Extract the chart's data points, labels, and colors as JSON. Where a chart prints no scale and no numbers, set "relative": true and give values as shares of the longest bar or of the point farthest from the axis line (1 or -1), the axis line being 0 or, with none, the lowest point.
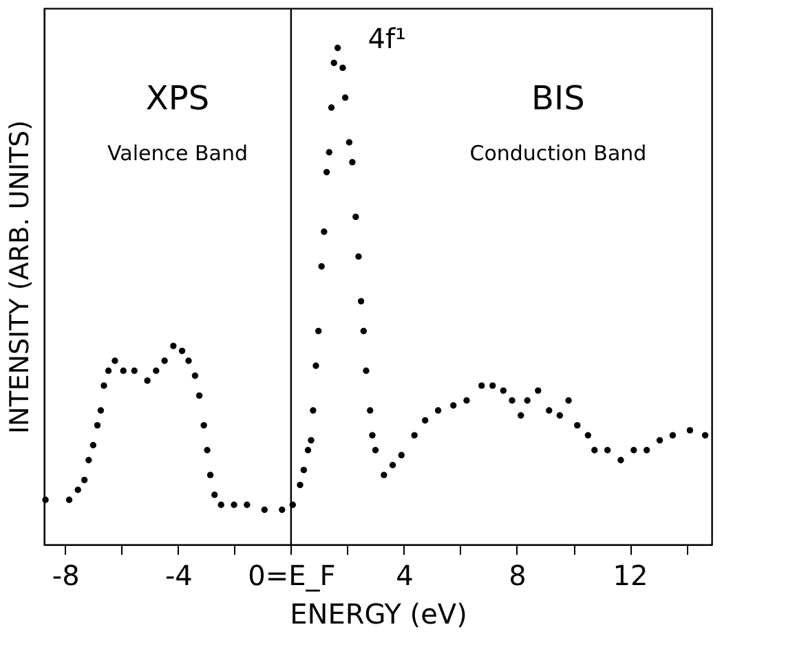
{
  "chart_data": {
    "type": "scatter",
    "relative": true,
    "xlabel": "ENERGY (eV)",
    "ylabel": "INTENSITY (ARB. UNITS)",
    "xlim": [
      -8.75,
      14.9
    ],
    "xticks": [
      -8,
      {
        "value": -6,
        "label": null
      },
      -4,
      {
        "value": -2,
        "label": null
      },
      {
        "value": 0,
        "label": "0=E_F"
      },
      {
        "value": 2,
        "label": null
      },
      4,
      {
        "value": 6,
        "label": null
      },
      8,
      {
        "value": 10,
        "label": null
      },
      12,
      {
        "value": 14,
        "label": null
      }
    ],
    "tick_labels": "x",
    "grid": false,
    "marker": "circle",
    "ref_lines": [
      {
        "axis": "x",
        "value": 0,
        "color": "#000000"
      }
    ],
    "annotations": [
      "XPS",
      "Valence Band",
      "BIS",
      "Conduction Band",
      {
        "text": "4f¹",
        "x": 1.65,
        "y": 1.0
      }
    ],
    "series": [
      {
        "color": "#000000",
        "x": [
          -8.7,
          -7.86,
          -7.55,
          -7.32,
          -7.17,
          -7.01,
          -6.86,
          -6.74,
          -6.63,
          -6.47,
          -6.24,
          -5.94,
          -5.55,
          -5.09,
          -4.78,
          -4.48,
          -4.17,
          -3.86,
          -3.63,
          -3.4,
          -3.25,
          -3.09,
          -2.97,
          -2.86,
          -2.71,
          -2.48,
          -2.02,
          -1.56,
          -0.94,
          -0.32,
          0.06,
          0.32,
          0.45,
          0.6,
          0.71,
          0.78,
          0.88,
          0.97,
          1.08,
          1.17,
          1.26,
          1.35,
          1.43,
          1.52,
          1.65,
          1.83,
          1.92,
          2.06,
          2.17,
          2.29,
          2.39,
          2.48,
          2.57,
          2.66,
          2.8,
          2.88,
          2.99,
          3.29,
          3.6,
          3.91,
          4.37,
          4.75,
          5.21,
          5.75,
          6.22,
          6.75,
          7.14,
          7.52,
          7.83,
          8.14,
          8.37,
          8.75,
          9.14,
          9.52,
          9.83,
          10.14,
          10.52,
          10.75,
          11.21,
          11.68,
          12.14,
          12.6,
          13.06,
          13.52,
          14.13,
          14.67
        ],
        "values": [
          0.09,
          0.09,
          0.11,
          0.13,
          0.17,
          0.2,
          0.24,
          0.27,
          0.32,
          0.35,
          0.37,
          0.35,
          0.35,
          0.33,
          0.35,
          0.37,
          0.4,
          0.39,
          0.37,
          0.34,
          0.3,
          0.24,
          0.19,
          0.14,
          0.1,
          0.08,
          0.08,
          0.08,
          0.07,
          0.07,
          0.08,
          0.12,
          0.15,
          0.19,
          0.21,
          0.27,
          0.36,
          0.43,
          0.56,
          0.63,
          0.75,
          0.79,
          0.88,
          0.97,
          1.0,
          0.96,
          0.9,
          0.81,
          0.77,
          0.66,
          0.58,
          0.49,
          0.43,
          0.35,
          0.27,
          0.22,
          0.19,
          0.14,
          0.16,
          0.18,
          0.22,
          0.25,
          0.27,
          0.28,
          0.29,
          0.32,
          0.32,
          0.31,
          0.29,
          0.26,
          0.29,
          0.31,
          0.27,
          0.26,
          0.29,
          0.24,
          0.22,
          0.19,
          0.19,
          0.17,
          0.19,
          0.19,
          0.21,
          0.22,
          0.23,
          0.22
        ]
      }
    ]
  }
}
